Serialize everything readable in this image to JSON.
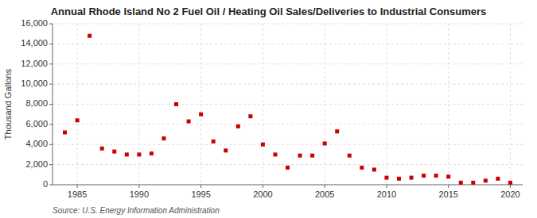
{
  "chart_data": {
    "type": "scatter",
    "title": "Annual Rhode Island No 2 Fuel Oil / Heating Oil Sales/Deliveries to Industrial Consumers",
    "ylabel": "Thousand Gallons",
    "annotations": [
      "Source: U.S. Energy Information Administration"
    ],
    "color": "#cc0000",
    "marker": "square",
    "grid": true,
    "x": [
      1984,
      1985,
      1986,
      1987,
      1988,
      1989,
      1990,
      1991,
      1992,
      1993,
      1994,
      1995,
      1996,
      1997,
      1998,
      1999,
      2000,
      2001,
      2002,
      2003,
      2004,
      2005,
      2006,
      2007,
      2008,
      2009,
      2010,
      2011,
      2012,
      2013,
      2014,
      2015,
      2016,
      2017,
      2018,
      2019,
      2020
    ],
    "values": [
      5200,
      6400,
      14800,
      3600,
      3300,
      3000,
      3000,
      3100,
      4600,
      8000,
      6300,
      7000,
      4300,
      3400,
      5800,
      6800,
      4000,
      3000,
      1700,
      2900,
      2900,
      4100,
      5300,
      2900,
      1700,
      1500,
      700,
      600,
      700,
      900,
      900,
      800,
      200,
      200,
      400,
      600,
      200
    ],
    "xlim": [
      1983,
      2021
    ],
    "xticks": [
      1985,
      1990,
      1995,
      2000,
      2005,
      2010,
      2015,
      2020
    ],
    "ylim": [
      0,
      16000
    ],
    "yticks": [
      0,
      {
        "value": 2000,
        "label": "2,000"
      },
      {
        "value": 4000,
        "label": "4,000"
      },
      {
        "value": 6000,
        "label": "6,000"
      },
      {
        "value": 8000,
        "label": "8,000"
      },
      {
        "value": 10000,
        "label": "10,000"
      },
      {
        "value": 12000,
        "label": "12,000"
      },
      {
        "value": 14000,
        "label": "14,000"
      },
      {
        "value": 16000,
        "label": "16,000"
      }
    ]
  }
}
